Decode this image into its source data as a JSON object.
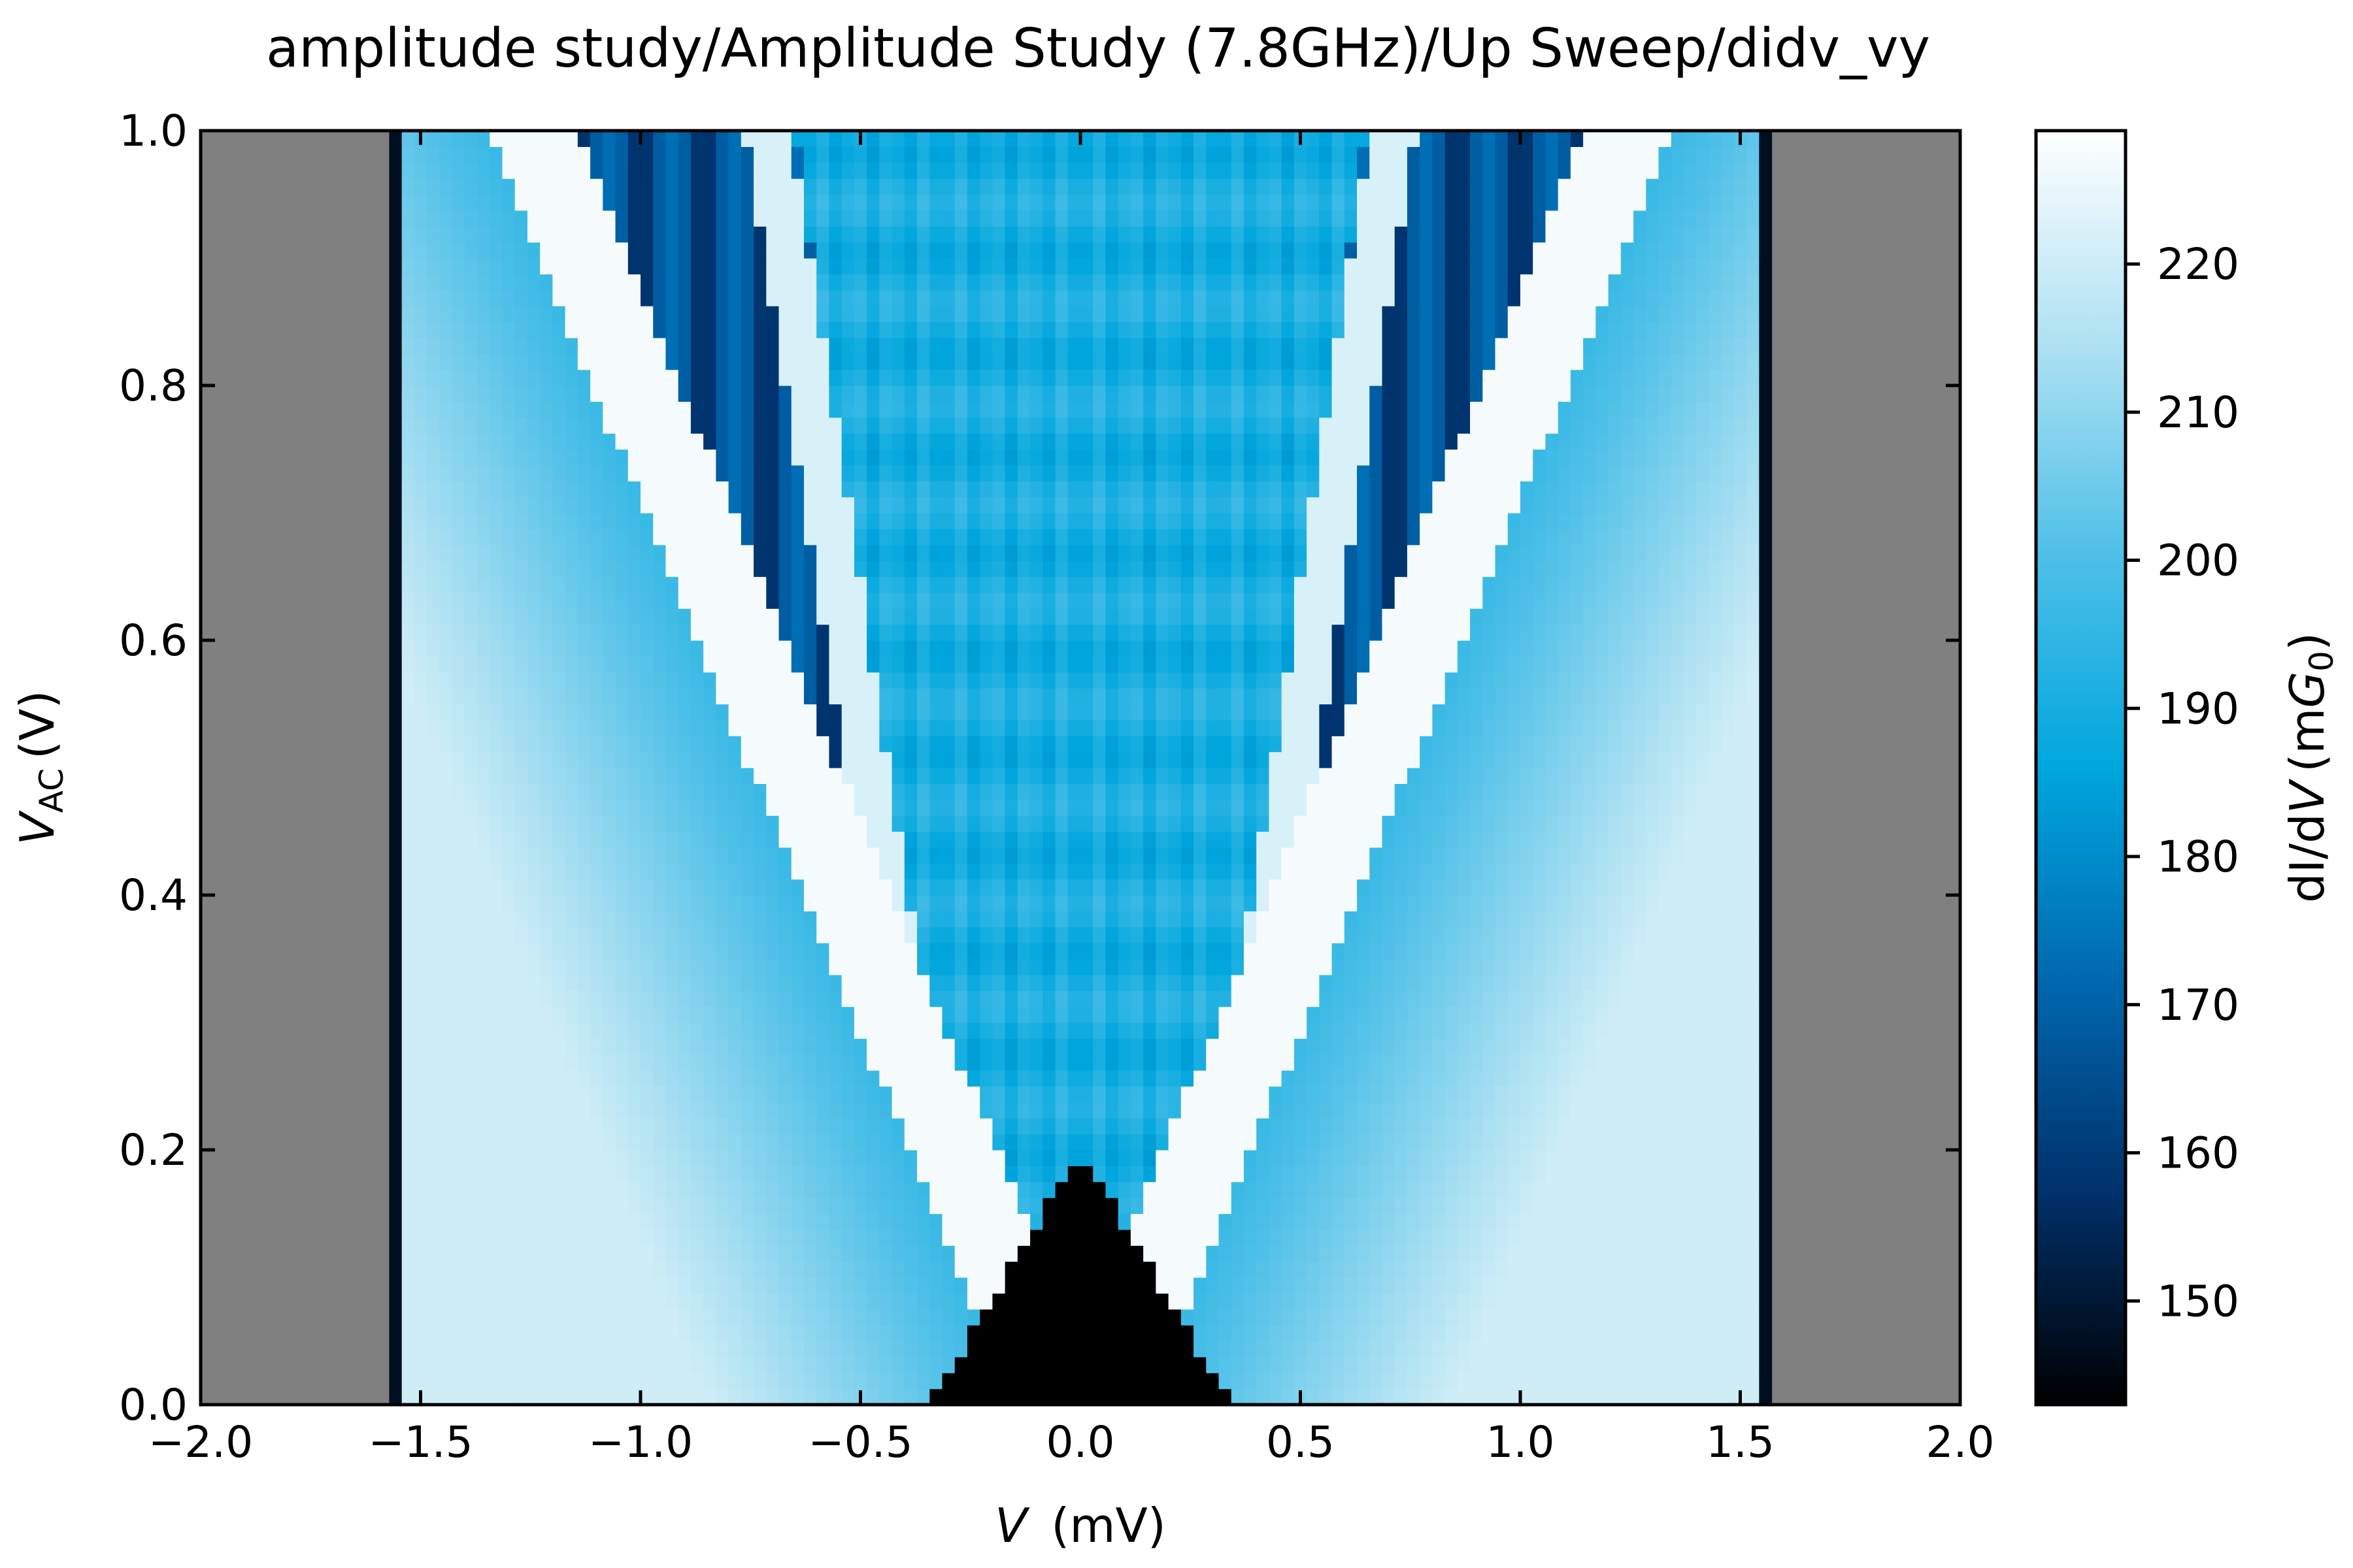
{
  "chart_data": {
    "type": "heatmap",
    "title": "amplitude study/Amplitude Study (7.8GHz)/Up Sweep/didv_vy",
    "xlabel": {
      "var": "V",
      "unit": "(mV)"
    },
    "ylabel": {
      "var": "V",
      "sub": "AC",
      "unit": "(V)"
    },
    "colorbar_label": {
      "pre": "dI/d",
      "var": "V",
      "unit_pre": "(m",
      "unit_var": "G",
      "unit_sub": "0",
      "unit_post": ")"
    },
    "xlim": [
      -2.0,
      2.0
    ],
    "ylim": [
      0.0,
      1.0
    ],
    "x_ticks": [
      -2.0,
      -1.5,
      -1.0,
      -0.5,
      0.0,
      0.5,
      1.0,
      1.5,
      2.0
    ],
    "x_tick_labels": [
      "−2.0",
      "−1.5",
      "−1.0",
      "−0.5",
      "0.0",
      "0.5",
      "1.0",
      "1.5",
      "2.0"
    ],
    "y_ticks": [
      0.0,
      0.2,
      0.4,
      0.6,
      0.8,
      1.0
    ],
    "y_tick_labels": [
      "0.0",
      "0.2",
      "0.4",
      "0.6",
      "0.8",
      "1.0"
    ],
    "colorbar_range": [
      143,
      229
    ],
    "colorbar_ticks": [
      150,
      160,
      170,
      180,
      190,
      200,
      210,
      220
    ],
    "colorbar_tick_labels": [
      "150",
      "160",
      "170",
      "180",
      "190",
      "200",
      "210",
      "220"
    ],
    "colormap": [
      "#000000",
      "#00316a",
      "#0068b0",
      "#00a6dd",
      "#4fc0e8",
      "#aee1f2",
      "#ffffff"
    ],
    "nan_color": "#808080",
    "data_extent_x": [
      -1.57,
      1.57
    ],
    "gap_edge_mV": 0.34,
    "gap_close_vac": 0.2
  }
}
